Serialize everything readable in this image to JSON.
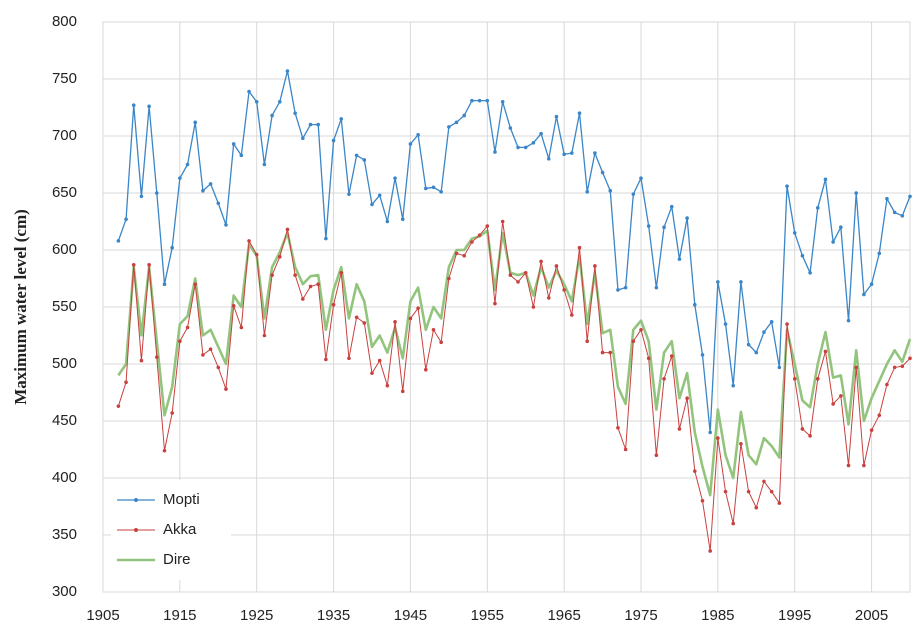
{
  "chart_data": {
    "type": "line",
    "y_label": "Maximum water level (cm)",
    "x": [
      1907,
      1908,
      1909,
      1910,
      1911,
      1912,
      1913,
      1914,
      1915,
      1916,
      1917,
      1918,
      1919,
      1920,
      1921,
      1922,
      1923,
      1924,
      1925,
      1926,
      1927,
      1928,
      1929,
      1930,
      1931,
      1932,
      1933,
      1934,
      1935,
      1936,
      1937,
      1938,
      1939,
      1940,
      1941,
      1942,
      1943,
      1944,
      1945,
      1946,
      1947,
      1948,
      1949,
      1950,
      1951,
      1952,
      1953,
      1954,
      1955,
      1956,
      1957,
      1958,
      1959,
      1960,
      1961,
      1962,
      1963,
      1964,
      1965,
      1966,
      1967,
      1968,
      1969,
      1970,
      1971,
      1972,
      1973,
      1974,
      1975,
      1976,
      1977,
      1978,
      1979,
      1980,
      1981,
      1982,
      1983,
      1984,
      1985,
      1986,
      1987,
      1988,
      1989,
      1990,
      1991,
      1992,
      1993,
      1994,
      1995,
      1996,
      1997,
      1998,
      1999,
      2000,
      2001,
      2002,
      2003,
      2004,
      2005,
      2006,
      2007,
      2008,
      2009,
      2010
    ],
    "series": [
      {
        "name": "Mopti",
        "color": "#3a86c8",
        "marker": true,
        "line_width": 1.3,
        "values": [
          608,
          627,
          727,
          647,
          726,
          650,
          570,
          602,
          663,
          675,
          712,
          652,
          658,
          641,
          622,
          693,
          683,
          739,
          730,
          675,
          718,
          730,
          757,
          720,
          698,
          710,
          710,
          610,
          696,
          715,
          649,
          683,
          679,
          640,
          648,
          625,
          663,
          627,
          693,
          701,
          654,
          655,
          651,
          708,
          712,
          718,
          731,
          731,
          731,
          686,
          730,
          707,
          690,
          690,
          694,
          702,
          680,
          717,
          684,
          685,
          720,
          651,
          685,
          668,
          652,
          565,
          567,
          649,
          663,
          621,
          567,
          620,
          638,
          592,
          628,
          552,
          508,
          440,
          572,
          535,
          481,
          572,
          517,
          510,
          528,
          537,
          497,
          656,
          615,
          595,
          580,
          637,
          662,
          607,
          620,
          538,
          650,
          561,
          570,
          597,
          645,
          633,
          630,
          647
        ]
      },
      {
        "name": "Akka",
        "color": "#c9413f",
        "marker": true,
        "line_width": 1,
        "values": [
          463,
          484,
          587,
          503,
          587,
          506,
          424,
          457,
          520,
          532,
          570,
          508,
          513,
          497,
          478,
          551,
          532,
          608,
          596,
          525,
          578,
          594,
          618,
          578,
          557,
          568,
          570,
          504,
          552,
          580,
          505,
          541,
          536,
          492,
          503,
          481,
          537,
          476,
          540,
          549,
          495,
          530,
          519,
          575,
          597,
          595,
          607,
          613,
          621,
          553,
          625,
          578,
          572,
          580,
          550,
          590,
          558,
          586,
          565,
          543,
          602,
          520,
          586,
          510,
          510,
          444,
          425,
          520,
          530,
          505,
          420,
          487,
          507,
          443,
          470,
          406,
          380,
          336,
          435,
          388,
          360,
          430,
          388,
          374,
          397,
          388,
          378,
          535,
          487,
          443,
          437,
          487,
          511,
          465,
          472,
          411,
          497,
          411,
          442,
          455,
          482,
          497,
          498,
          505
        ]
      },
      {
        "name": "Dire",
        "color": "#93c47d",
        "marker": false,
        "line_width": 2.6,
        "values": [
          490,
          500,
          585,
          525,
          585,
          520,
          455,
          480,
          535,
          542,
          575,
          525,
          530,
          515,
          500,
          560,
          550,
          605,
          595,
          540,
          585,
          598,
          615,
          585,
          570,
          577,
          578,
          530,
          565,
          585,
          540,
          570,
          555,
          515,
          525,
          510,
          532,
          505,
          555,
          567,
          530,
          550,
          540,
          585,
          600,
          600,
          610,
          612,
          617,
          565,
          615,
          580,
          578,
          580,
          560,
          585,
          567,
          582,
          570,
          555,
          595,
          535,
          580,
          527,
          530,
          480,
          465,
          530,
          538,
          520,
          460,
          510,
          520,
          470,
          492,
          440,
          410,
          385,
          460,
          420,
          400,
          458,
          420,
          412,
          435,
          428,
          418,
          530,
          500,
          468,
          462,
          500,
          528,
          488,
          490,
          447,
          512,
          450,
          470,
          485,
          500,
          512,
          502,
          522
        ]
      }
    ],
    "xlim": [
      1905,
      2010
    ],
    "ylim": [
      300,
      800
    ],
    "xticks": [
      1905,
      1915,
      1925,
      1935,
      1945,
      1955,
      1965,
      1975,
      1985,
      1995,
      2005
    ],
    "yticks": [
      300,
      350,
      400,
      450,
      500,
      550,
      600,
      650,
      700,
      750,
      800
    ],
    "grid": true,
    "legend": "lower-left"
  }
}
